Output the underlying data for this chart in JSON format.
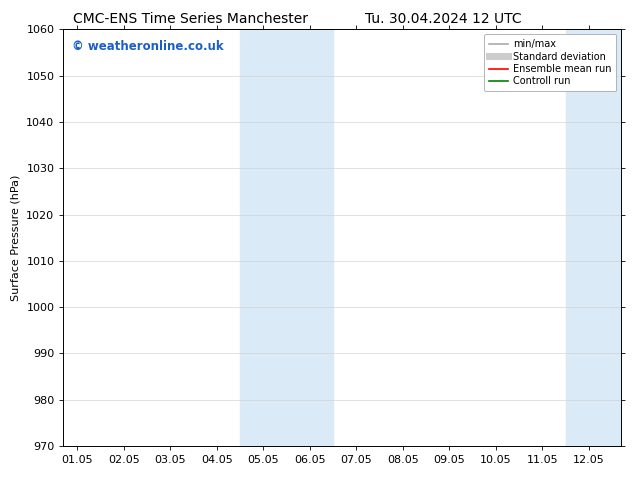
{
  "title_left": "CMC-ENS Time Series Manchester",
  "title_right": "Tu. 30.04.2024 12 UTC",
  "ylabel": "Surface Pressure (hPa)",
  "ylim": [
    970,
    1060
  ],
  "yticks": [
    970,
    980,
    990,
    1000,
    1010,
    1020,
    1030,
    1040,
    1050,
    1060
  ],
  "xtick_labels": [
    "01.05",
    "02.05",
    "03.05",
    "04.05",
    "05.05",
    "06.05",
    "07.05",
    "08.05",
    "09.05",
    "10.05",
    "11.05",
    "12.05"
  ],
  "xtick_positions": [
    0,
    1,
    2,
    3,
    4,
    5,
    6,
    7,
    8,
    9,
    10,
    11
  ],
  "xlim": [
    -0.3,
    11.7
  ],
  "shaded_regions": [
    {
      "x_start": 3.5,
      "x_end": 5.5,
      "color": "#daeaf7"
    },
    {
      "x_start": 10.5,
      "x_end": 11.7,
      "color": "#daeaf7"
    }
  ],
  "watermark_text": "© weatheronline.co.uk",
  "watermark_color": "#1a5fc8",
  "watermark_fontsize": 8.5,
  "legend_entries": [
    {
      "label": "min/max",
      "color": "#aaaaaa",
      "lw": 1.2
    },
    {
      "label": "Standard deviation",
      "color": "#cccccc",
      "lw": 5
    },
    {
      "label": "Ensemble mean run",
      "color": "#ff0000",
      "lw": 1.2
    },
    {
      "label": "Controll run",
      "color": "#008000",
      "lw": 1.2
    }
  ],
  "bg_color": "#ffffff",
  "title_fontsize": 10,
  "axis_label_fontsize": 8,
  "tick_fontsize": 8,
  "ylabel_fontsize": 8
}
